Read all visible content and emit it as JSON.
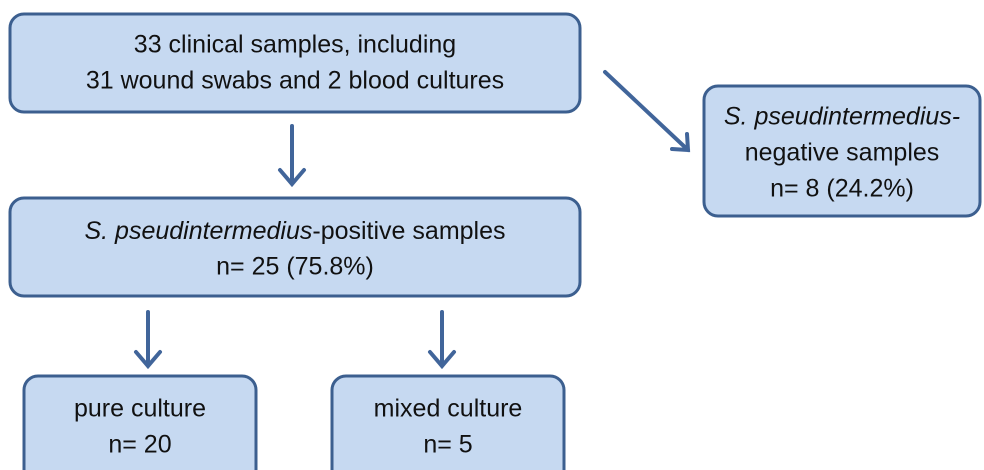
{
  "nodes": [
    {
      "lines": [
        "33 clinical samples, including",
        "31 wound swabs and 2 blood cultures"
      ]
    },
    {
      "lines": [
        {
          "italic": "S. pseudintermedius-"
        },
        "negative samples",
        "n= 8 (24.2%)"
      ]
    },
    {
      "lines": [
        {
          "italic": "S. pseudintermedius",
          "rest": "-positive samples"
        },
        "n= 25 (75.8%)"
      ]
    },
    {
      "lines": [
        "pure culture",
        "n= 20"
      ]
    },
    {
      "lines": [
        "mixed culture",
        "n= 5"
      ]
    }
  ]
}
